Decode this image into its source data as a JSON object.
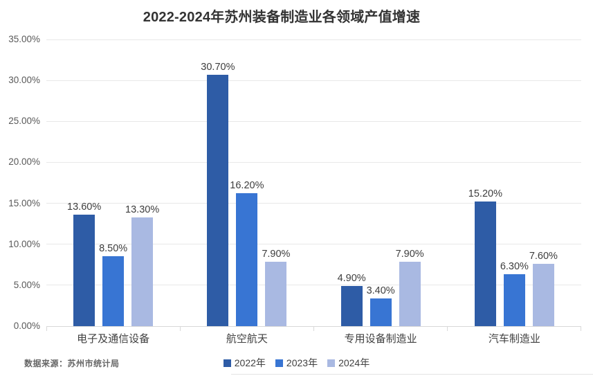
{
  "title": "2022-2024年苏州装备制造业各领域产值增速",
  "source_note": "数据来源：苏州市统计局",
  "colors": {
    "series_2022": "#2E5CA6",
    "series_2023": "#3875D3",
    "series_2024": "#A9B9E2",
    "gridline": "#E8E8E8",
    "axis_line": "#D8D8D8",
    "title_text": "#333333",
    "data_label_text": "#3D3D3D",
    "y_tick_text": "#595959",
    "category_text": "#404040",
    "legend_text": "#404040",
    "source_text": "#666666",
    "background": "#FFFFFF"
  },
  "chart_data": {
    "type": "bar",
    "title": "2022-2024年苏州装备制造业各领域产值增速",
    "categories": [
      "电子及通信设备",
      "航空航天",
      "专用设备制造业",
      "汽车制造业"
    ],
    "series": [
      {
        "name": "2022年",
        "color": "#2E5CA6",
        "values": [
          13.6,
          30.7,
          4.9,
          15.2
        ],
        "labels": [
          "13.60%",
          "30.70%",
          "4.90%",
          "15.20%"
        ]
      },
      {
        "name": "2023年",
        "color": "#3875D3",
        "values": [
          8.5,
          16.2,
          3.4,
          6.3
        ],
        "labels": [
          "8.50%",
          "16.20%",
          "3.40%",
          "6.30%"
        ]
      },
      {
        "name": "2024年",
        "color": "#A9B9E2",
        "values": [
          13.3,
          7.9,
          7.9,
          7.6
        ],
        "labels": [
          "13.30%",
          "7.90%",
          "7.90%",
          "7.60%"
        ]
      }
    ],
    "y_axis": {
      "min": 0,
      "max": 35,
      "step": 5,
      "ticks": [
        "0.00%",
        "5.00%",
        "10.00%",
        "15.00%",
        "20.00%",
        "25.00%",
        "30.00%",
        "35.00%"
      ]
    },
    "xlabel": "",
    "ylabel": "",
    "grid": true,
    "legend_position": "bottom",
    "source_note": "数据来源：苏州市统计局"
  }
}
